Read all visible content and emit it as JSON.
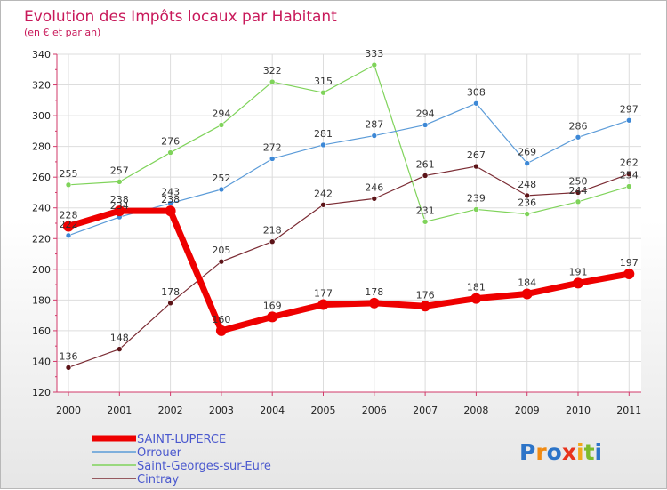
{
  "chart_data": {
    "type": "line",
    "title": "Evolution des Impôts locaux par Habitant",
    "subtitle": "(en € et par an)",
    "categories": [
      "2000",
      "2001",
      "2002",
      "2003",
      "2004",
      "2005",
      "2006",
      "2007",
      "2008",
      "2009",
      "2010",
      "2011"
    ],
    "ylim": [
      120,
      340
    ],
    "yticks": [
      120,
      140,
      160,
      180,
      200,
      220,
      240,
      260,
      280,
      300,
      320,
      340
    ],
    "grid": true,
    "legend_position": "bottom-left",
    "series": [
      {
        "name": "Saint-Georges-sur-Eure",
        "color": "#7fd35a",
        "dot": "#7fd35a",
        "width": 1.2,
        "r": 3,
        "values": [
          255,
          257,
          276,
          294,
          322,
          315,
          333,
          231,
          239,
          236,
          244,
          254
        ]
      },
      {
        "name": "Orrouer",
        "color": "#5b9bd8",
        "dot": "#3d88d6",
        "width": 1.2,
        "r": 3,
        "values": [
          222,
          234,
          243,
          252,
          272,
          281,
          287,
          294,
          308,
          269,
          286,
          297
        ]
      },
      {
        "name": "Cintray",
        "color": "#7b2c34",
        "dot": "#5c1418",
        "width": 1.2,
        "r": 3,
        "values": [
          136,
          148,
          178,
          205,
          218,
          242,
          246,
          261,
          267,
          248,
          250,
          262
        ]
      },
      {
        "name": "SAINT-LUPERCE",
        "color": "#ee0000",
        "dot": "#ee0000",
        "width": 7,
        "r": 6,
        "values": [
          228,
          238,
          238,
          160,
          169,
          177,
          178,
          176,
          181,
          184,
          191,
          197
        ]
      }
    ],
    "legend_order": [
      "SAINT-LUPERCE",
      "Orrouer",
      "Saint-Georges-sur-Eure",
      "Cintray"
    ]
  },
  "logo": {
    "letters": [
      "P",
      "r",
      "o",
      "x",
      "i",
      "t",
      "i"
    ],
    "colors": [
      "#2c74c8",
      "#f08a12",
      "#2c74c8",
      "#e8331c",
      "#f0a81c",
      "#7dbb2c",
      "#2c74c8"
    ]
  }
}
